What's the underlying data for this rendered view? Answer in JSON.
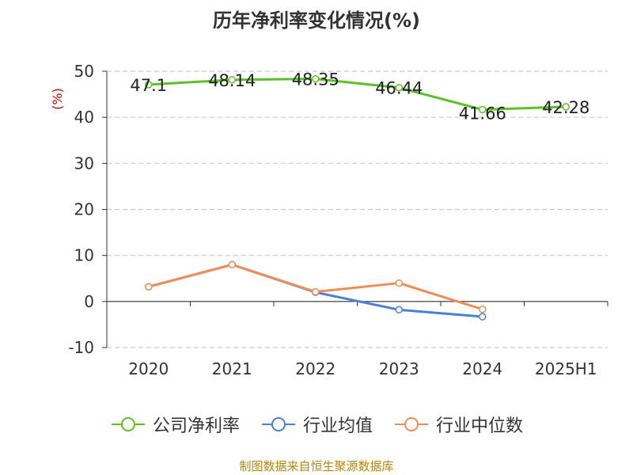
{
  "title": "历年净利率变化情况(%)",
  "source": "制图数据来自恒生聚源数据库",
  "chart_data": {
    "type": "line",
    "title": "历年净利率变化情况(%)",
    "ylabel": "(%)",
    "xlabel": "",
    "categories": [
      "2020",
      "2021",
      "2022",
      "2023",
      "2024",
      "2025H1"
    ],
    "ylim": [
      -10,
      50
    ],
    "yticks": [
      50,
      40,
      30,
      20,
      10,
      0,
      -10
    ],
    "grid": true,
    "legend_position": "bottom",
    "series": [
      {
        "name": "公司净利率",
        "color": "#5bc225",
        "values": [
          47.1,
          48.14,
          48.35,
          46.44,
          41.66,
          42.28
        ],
        "labels": [
          "47.1",
          "48.14",
          "48.35",
          "46.44",
          "41.66",
          "42.28"
        ]
      },
      {
        "name": "行业均值",
        "color": "#4a7fdb",
        "values": [
          3.2,
          8.0,
          2.0,
          -1.8,
          -3.3,
          null
        ]
      },
      {
        "name": "行业中位数",
        "color": "#f28c55",
        "values": [
          3.2,
          8.0,
          2.1,
          4.0,
          -1.7,
          null
        ]
      }
    ]
  }
}
